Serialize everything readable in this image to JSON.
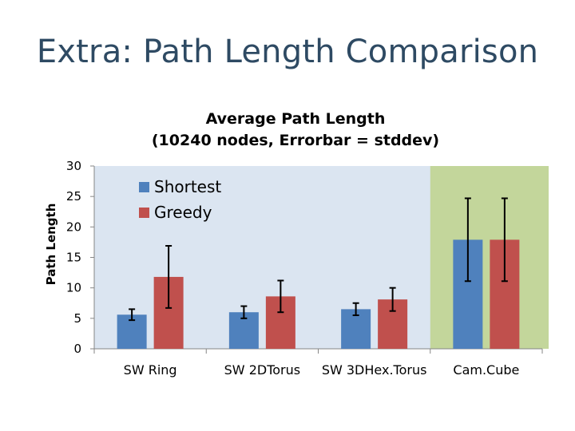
{
  "slide": {
    "title": "Extra: Path Length Comparison"
  },
  "chart_data": {
    "type": "bar",
    "title_line1": "Average Path Length",
    "title_line2": "(10240 nodes, Errorbar = stddev)",
    "xlabel": "",
    "ylabel": "Path Length",
    "ylim": [
      0,
      30
    ],
    "yticks": [
      0,
      5,
      10,
      15,
      20,
      25,
      30
    ],
    "categories": [
      "SW Ring",
      "SW 2DTorus",
      "SW 3DHex.Torus",
      "Cam.Cube"
    ],
    "series": [
      {
        "name": "Shortest",
        "color": "#4f81bd",
        "values": [
          5.6,
          6.0,
          6.5,
          17.9
        ],
        "errors": [
          0.9,
          1.0,
          1.0,
          6.8
        ]
      },
      {
        "name": "Greedy",
        "color": "#c0504d",
        "values": [
          11.8,
          8.6,
          8.1,
          17.9
        ],
        "errors": [
          5.1,
          2.6,
          1.9,
          6.8
        ]
      }
    ],
    "colors": {
      "plot_background": "#dbe5f1",
      "highlight_background": "#c3d69b",
      "axis": "#868686"
    },
    "highlight_category": "Cam.Cube",
    "legend_position": "top-left"
  }
}
